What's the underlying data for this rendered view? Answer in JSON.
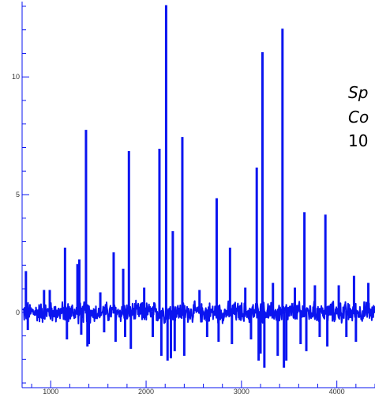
{
  "chart_data": {
    "type": "line",
    "title": "",
    "xlabel": "",
    "ylabel": "",
    "xlim": [
      700,
      4400
    ],
    "ylim": [
      -3.2,
      13.2
    ],
    "x_ticks": [
      1000,
      2000,
      3000,
      4000
    ],
    "x_tick_labels": [
      "1000",
      "2000",
      "3000",
      "4000"
    ],
    "y_ticks": [
      0,
      5,
      10
    ],
    "y_tick_labels": [
      "0",
      "5",
      "10"
    ],
    "grid": false,
    "series_color": "#0a14f0",
    "noise_amplitude": 0.35,
    "series": [
      {
        "name": "",
        "spikes": [
          {
            "x": 740,
            "y": 1.7
          },
          {
            "x": 760,
            "y": -0.7
          },
          {
            "x": 930,
            "y": 0.9
          },
          {
            "x": 990,
            "y": 0.9
          },
          {
            "x": 1150,
            "y": 2.7
          },
          {
            "x": 1170,
            "y": -1.1
          },
          {
            "x": 1280,
            "y": 2.0
          },
          {
            "x": 1300,
            "y": 2.2
          },
          {
            "x": 1320,
            "y": -0.9
          },
          {
            "x": 1370,
            "y": 7.7
          },
          {
            "x": 1385,
            "y": -1.4
          },
          {
            "x": 1400,
            "y": -1.3
          },
          {
            "x": 1520,
            "y": 0.8
          },
          {
            "x": 1560,
            "y": -0.8
          },
          {
            "x": 1660,
            "y": 2.5
          },
          {
            "x": 1680,
            "y": -1.2
          },
          {
            "x": 1760,
            "y": 1.8
          },
          {
            "x": 1780,
            "y": -1.0
          },
          {
            "x": 1820,
            "y": 6.8
          },
          {
            "x": 1840,
            "y": -1.5
          },
          {
            "x": 1980,
            "y": 1.0
          },
          {
            "x": 2070,
            "y": -1.0
          },
          {
            "x": 2140,
            "y": 6.9
          },
          {
            "x": 2160,
            "y": -1.8
          },
          {
            "x": 2210,
            "y": 13.0
          },
          {
            "x": 2225,
            "y": -2.0
          },
          {
            "x": 2260,
            "y": -1.9
          },
          {
            "x": 2280,
            "y": 3.4
          },
          {
            "x": 2300,
            "y": -1.6
          },
          {
            "x": 2380,
            "y": 7.4
          },
          {
            "x": 2400,
            "y": -1.8
          },
          {
            "x": 2560,
            "y": 0.9
          },
          {
            "x": 2640,
            "y": -1.0
          },
          {
            "x": 2740,
            "y": 4.8
          },
          {
            "x": 2760,
            "y": -1.2
          },
          {
            "x": 2880,
            "y": 2.7
          },
          {
            "x": 2900,
            "y": -1.3
          },
          {
            "x": 3040,
            "y": 1.0
          },
          {
            "x": 3100,
            "y": -1.1
          },
          {
            "x": 3160,
            "y": 6.1
          },
          {
            "x": 3180,
            "y": -2.0
          },
          {
            "x": 3200,
            "y": -1.7
          },
          {
            "x": 3220,
            "y": 11.0
          },
          {
            "x": 3240,
            "y": -2.3
          },
          {
            "x": 3330,
            "y": 1.2
          },
          {
            "x": 3380,
            "y": -1.8
          },
          {
            "x": 3430,
            "y": 12.0
          },
          {
            "x": 3445,
            "y": -2.3
          },
          {
            "x": 3470,
            "y": -2.0
          },
          {
            "x": 3560,
            "y": 1.0
          },
          {
            "x": 3620,
            "y": -1.3
          },
          {
            "x": 3660,
            "y": 4.2
          },
          {
            "x": 3680,
            "y": -1.6
          },
          {
            "x": 3770,
            "y": 1.1
          },
          {
            "x": 3820,
            "y": -1.0
          },
          {
            "x": 3880,
            "y": 4.1
          },
          {
            "x": 3900,
            "y": -1.4
          },
          {
            "x": 4020,
            "y": 1.1
          },
          {
            "x": 4100,
            "y": -1.0
          },
          {
            "x": 4180,
            "y": 1.5
          },
          {
            "x": 4200,
            "y": -1.2
          },
          {
            "x": 4330,
            "y": 1.2
          }
        ]
      }
    ]
  },
  "overlay_text": {
    "line1": "Sp",
    "line2": "Co",
    "line3": "10"
  }
}
